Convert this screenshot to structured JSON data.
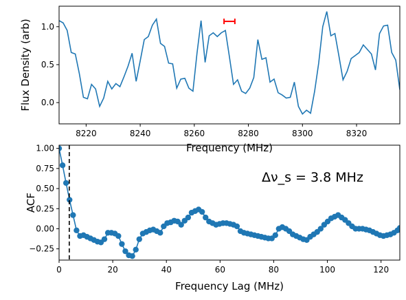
{
  "chart_data": [
    {
      "type": "line",
      "xlabel": "Frequency (MHz)",
      "ylabel": "Flux Density (arb)",
      "xlim": [
        8210,
        8336
      ],
      "ylim": [
        -0.28,
        1.27
      ],
      "xticks": [
        8220,
        8240,
        8260,
        8280,
        8300,
        8320
      ],
      "yticks": [
        -0.0,
        0.5,
        1.0
      ],
      "ytick_labels": [
        "0.0",
        "0.5",
        "1.0"
      ],
      "grid": false,
      "series": [
        {
          "color": "#1f77b4",
          "x": [
            8210.0,
            8211.5,
            8213.0,
            8214.5,
            8216.0,
            8217.5,
            8219.0,
            8220.5,
            8222.0,
            8223.5,
            8225.0,
            8226.5,
            8228.0,
            8229.5,
            8231.0,
            8232.5,
            8234.0,
            8235.5,
            8237.0,
            8238.5,
            8240.0,
            8241.5,
            8243.0,
            8244.5,
            8246.0,
            8247.5,
            8249.0,
            8250.5,
            8252.0,
            8253.5,
            8255.0,
            8256.5,
            8258.0,
            8259.5,
            8261.0,
            8262.5,
            8264.0,
            8265.5,
            8267.0,
            8268.5,
            8270.0,
            8271.5,
            8273.0,
            8274.5,
            8276.0,
            8277.5,
            8279.0,
            8280.5,
            8282.0,
            8283.5,
            8285.0,
            8286.5,
            8288.0,
            8289.5,
            8291.0,
            8292.5,
            8294.0,
            8295.5,
            8297.0,
            8298.5,
            8300.0,
            8301.5,
            8303.0,
            8304.5,
            8306.0,
            8307.5,
            8309.0,
            8310.5,
            8312.0,
            8313.5,
            8315.0,
            8316.5,
            8318.0,
            8319.5,
            8321.0,
            8322.5,
            8324.0,
            8325.5,
            8327.0,
            8328.5,
            8330.0,
            8331.5,
            8333.0,
            8334.5,
            8336.0
          ],
          "y": [
            1.08,
            1.05,
            0.95,
            0.66,
            0.64,
            0.38,
            0.07,
            0.05,
            0.24,
            0.18,
            -0.05,
            0.06,
            0.28,
            0.18,
            0.25,
            0.21,
            0.34,
            0.48,
            0.65,
            0.28,
            0.55,
            0.83,
            0.87,
            1.02,
            1.1,
            0.78,
            0.74,
            0.52,
            0.51,
            0.19,
            0.31,
            0.32,
            0.19,
            0.15,
            0.65,
            1.08,
            0.53,
            0.88,
            0.92,
            0.87,
            0.92,
            0.95,
            0.6,
            0.24,
            0.3,
            0.15,
            0.12,
            0.19,
            0.33,
            0.83,
            0.57,
            0.59,
            0.27,
            0.31,
            0.13,
            0.1,
            0.06,
            0.07,
            0.27,
            -0.05,
            -0.15,
            -0.1,
            -0.14,
            0.15,
            0.52,
            1.0,
            1.2,
            0.88,
            0.91,
            0.61,
            0.3,
            0.41,
            0.58,
            0.62,
            0.66,
            0.76,
            0.7,
            0.64,
            0.43,
            0.91,
            1.01,
            1.02,
            0.66,
            0.56,
            0.17
          ]
        }
      ],
      "error_bar": {
        "x": [
          8271.0,
          8275.0
        ],
        "y": 1.07,
        "color": "#ff0000"
      }
    },
    {
      "type": "line",
      "xlabel": "Frequency Lag (MHz)",
      "ylabel": "ACF",
      "xlim": [
        0,
        127
      ],
      "ylim": [
        -0.39,
        1.04
      ],
      "xticks": [
        0,
        20,
        40,
        60,
        80,
        100,
        120
      ],
      "yticks": [
        -0.25,
        0.0,
        0.25,
        0.5,
        0.75,
        1.0
      ],
      "ytick_labels": [
        "−0.25",
        "0.00",
        "0.25",
        "0.50",
        "0.75",
        "1.00"
      ],
      "grid": false,
      "annotation": "Δν_s = 3.8 MHz",
      "vline": {
        "x": 3.8,
        "style": "dashed"
      },
      "series": [
        {
          "color": "#1f77b4",
          "markers": true,
          "x": [
            0,
            1.3,
            2.6,
            3.9,
            5.2,
            6.5,
            7.8,
            9.1,
            10.4,
            11.7,
            13.0,
            14.3,
            15.6,
            16.9,
            18.2,
            19.5,
            20.8,
            22.1,
            23.4,
            24.7,
            26.0,
            27.3,
            28.6,
            29.9,
            31.2,
            32.5,
            33.8,
            35.1,
            36.4,
            37.7,
            39.0,
            40.3,
            41.6,
            42.9,
            44.2,
            45.5,
            46.8,
            48.1,
            49.4,
            50.7,
            52.0,
            53.3,
            54.6,
            55.9,
            57.2,
            58.5,
            59.8,
            61.1,
            62.4,
            63.7,
            65.0,
            66.3,
            67.6,
            68.9,
            70.2,
            71.5,
            72.8,
            74.1,
            75.4,
            76.7,
            78.0,
            79.3,
            80.6,
            81.9,
            83.2,
            84.5,
            85.8,
            87.1,
            88.4,
            89.7,
            91.0,
            92.3,
            93.6,
            94.9,
            96.2,
            97.5,
            98.8,
            100.1,
            101.4,
            102.7,
            104.0,
            105.3,
            106.6,
            107.9,
            109.2,
            110.5,
            111.8,
            113.1,
            114.4,
            115.7,
            117.0,
            118.3,
            119.6,
            120.9,
            122.2,
            123.5,
            124.8,
            126.1,
            127.0
          ],
          "y": [
            1.0,
            0.79,
            0.57,
            0.36,
            0.17,
            -0.02,
            -0.09,
            -0.08,
            -0.1,
            -0.12,
            -0.14,
            -0.16,
            -0.17,
            -0.13,
            -0.05,
            -0.05,
            -0.06,
            -0.09,
            -0.19,
            -0.28,
            -0.33,
            -0.34,
            -0.26,
            -0.13,
            -0.06,
            -0.04,
            -0.02,
            -0.01,
            -0.03,
            -0.05,
            0.03,
            0.07,
            0.08,
            0.1,
            0.09,
            0.05,
            0.1,
            0.14,
            0.2,
            0.22,
            0.24,
            0.21,
            0.14,
            0.09,
            0.07,
            0.05,
            0.06,
            0.07,
            0.07,
            0.06,
            0.05,
            0.03,
            -0.03,
            -0.05,
            -0.06,
            -0.07,
            -0.08,
            -0.09,
            -0.1,
            -0.11,
            -0.12,
            -0.12,
            -0.08,
            0.0,
            0.02,
            0.0,
            -0.03,
            -0.07,
            -0.09,
            -0.11,
            -0.13,
            -0.14,
            -0.1,
            -0.07,
            -0.04,
            0.0,
            0.05,
            0.09,
            0.13,
            0.15,
            0.17,
            0.14,
            0.11,
            0.07,
            0.03,
            0.0,
            0.0,
            0.0,
            -0.01,
            -0.02,
            -0.04,
            -0.06,
            -0.08,
            -0.09,
            -0.08,
            -0.07,
            -0.05,
            -0.02,
            0.01
          ]
        }
      ]
    }
  ]
}
